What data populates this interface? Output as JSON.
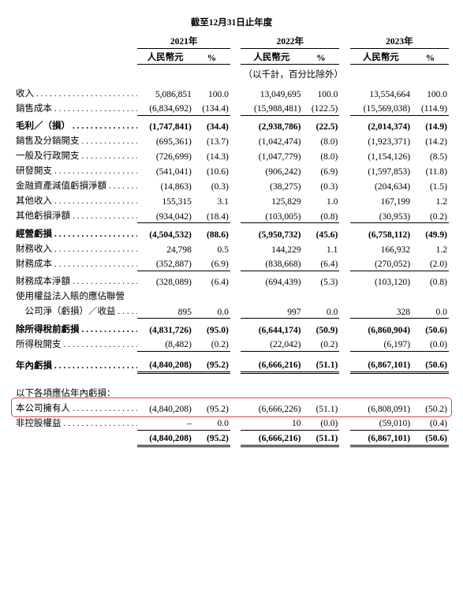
{
  "header": {
    "title": "截至12月31日止年度",
    "years": [
      "2021年",
      "2022年",
      "2023年"
    ],
    "sub_rmb": "人民幣元",
    "sub_pct": "%",
    "unit_note": "（以千計，百分比除外）"
  },
  "rows": [
    {
      "label": "收入",
      "dots": true,
      "v1": "5,086,851",
      "p1": "100.0",
      "v2": "13,049,695",
      "p2": "100.0",
      "v3": "13,554,664",
      "p3": "100.0"
    },
    {
      "label": "銷售成本",
      "dots": true,
      "v1": "(6,834,692)",
      "p1": "(134.4)",
      "v2": "(15,988,481)",
      "p2": "(122.5)",
      "v3": "(15,569,038)",
      "p3": "(114.9)",
      "bb": "1"
    },
    {
      "spacer": true,
      "sm": true
    },
    {
      "label": "毛利／（損）",
      "dots": true,
      "bold": true,
      "v1": "(1,747,841)",
      "p1": "(34.4)",
      "v2": "(2,938,786)",
      "p2": "(22.5)",
      "v3": "(2,014,374)",
      "p3": "(14.9)"
    },
    {
      "label": "銷售及分銷開支",
      "dots": true,
      "v1": "(695,361)",
      "p1": "(13.7)",
      "v2": "(1,042,474)",
      "p2": "(8.0)",
      "v3": "(1,923,371)",
      "p3": "(14.2)"
    },
    {
      "label": "一般及行政開支",
      "dots": true,
      "v1": "(726,699)",
      "p1": "(14.3)",
      "v2": "(1,047,779)",
      "p2": "(8.0)",
      "v3": "(1,154,126)",
      "p3": "(8.5)"
    },
    {
      "label": "研發開支",
      "dots": true,
      "v1": "(541,041)",
      "p1": "(10.6)",
      "v2": "(906,242)",
      "p2": "(6.9)",
      "v3": "(1,597,853)",
      "p3": "(11.8)"
    },
    {
      "label": "金融資產減值虧損淨額",
      "dots": true,
      "v1": "(14,863)",
      "p1": "(0.3)",
      "v2": "(38,275)",
      "p2": "(0.3)",
      "v3": "(204,634)",
      "p3": "(1.5)"
    },
    {
      "label": "其他收入",
      "dots": true,
      "v1": "155,315",
      "p1": "3.1",
      "v2": "125,829",
      "p2": "1.0",
      "v3": "167,199",
      "p3": "1.2"
    },
    {
      "label": "其他虧損淨額",
      "dots": true,
      "v1": "(934,042)",
      "p1": "(18.4)",
      "v2": "(103,005)",
      "p2": "(0.8)",
      "v3": "(30,953)",
      "p3": "(0.2)",
      "bb": "1"
    },
    {
      "spacer": true,
      "sm": true
    },
    {
      "label": "經營虧損",
      "dots": true,
      "bold": true,
      "v1": "(4,504,532)",
      "p1": "(88.6)",
      "v2": "(5,950,732)",
      "p2": "(45.6)",
      "v3": "(6,758,112)",
      "p3": "(49.9)"
    },
    {
      "label": "財務收入",
      "dots": true,
      "v1": "24,798",
      "p1": "0.5",
      "v2": "144,229",
      "p2": "1.1",
      "v3": "166,932",
      "p3": "1.2"
    },
    {
      "label": "財務成本",
      "dots": true,
      "v1": "(352,887)",
      "p1": "(6.9)",
      "v2": "(838,668)",
      "p2": "(6.4)",
      "v3": "(270,052)",
      "p3": "(2.0)",
      "bb": "1"
    },
    {
      "spacer": true,
      "sm": true
    },
    {
      "label": "財務成本淨額",
      "dots": true,
      "v1": "(328,089)",
      "p1": "(6.4)",
      "v2": "(694,439)",
      "p2": "(5.3)",
      "v3": "(103,120)",
      "p3": "(0.8)"
    },
    {
      "label": "使用權益法入賬的應佔聯營",
      "dots": false,
      "v1": "",
      "p1": "",
      "v2": "",
      "p2": "",
      "v3": "",
      "p3": ""
    },
    {
      "label": "　公司淨（虧損）／收益",
      "dots": true,
      "v1": "895",
      "p1": "0.0",
      "v2": "997",
      "p2": "0.0",
      "v3": "328",
      "p3": "0.0",
      "bb": "1"
    },
    {
      "spacer": true,
      "sm": true
    },
    {
      "label": "除所得稅前虧損",
      "dots": true,
      "bold": true,
      "v1": "(4,831,726)",
      "p1": "(95.0)",
      "v2": "(6,644,174)",
      "p2": "(50.9)",
      "v3": "(6,860,904)",
      "p3": "(50.6)"
    },
    {
      "label": "所得稅開支",
      "dots": true,
      "v1": "(8,482)",
      "p1": "(0.2)",
      "v2": "(22,042)",
      "p2": "(0.2)",
      "v3": "(6,197)",
      "p3": "(0.0)",
      "bb": "1"
    },
    {
      "spacer": true
    },
    {
      "label": "年內虧損",
      "dots": true,
      "bold": true,
      "v1": "(4,840,208)",
      "p1": "(95.2)",
      "v2": "(6,666,216)",
      "p2": "(51.1)",
      "v3": "(6,867,101)",
      "p3": "(50.6)",
      "bb": "3"
    },
    {
      "spacer": true
    },
    {
      "spacer": true
    },
    {
      "label": "以下各項應佔年內虧損：",
      "dots": false,
      "v1": "",
      "p1": "",
      "v2": "",
      "p2": "",
      "v3": "",
      "p3": ""
    },
    {
      "label": "本公司擁有人",
      "dots": true,
      "highlight": true,
      "v1": "(4,840,208)",
      "p1": "(95.2)",
      "v2": "(6,666,226)",
      "p2": "(51.1)",
      "v3": "(6,808,091)",
      "p3": "(50.2)"
    },
    {
      "label": "非控股權益",
      "dots": true,
      "v1": "–",
      "p1": "0.0",
      "v2": "10",
      "p2": "(0.0)",
      "v3": "(59,010)",
      "p3": "(0.4)",
      "bb": "1"
    },
    {
      "spacer": true,
      "sm": true
    },
    {
      "label": "",
      "dots": false,
      "bold": true,
      "v1": "(4,840,208)",
      "p1": "(95.2)",
      "v2": "(6,666,216)",
      "p2": "(51.1)",
      "v3": "(6,867,101)",
      "p3": "(50.6)",
      "bb": "3"
    }
  ],
  "colors": {
    "highlight_border": "#e64545",
    "text": "#000000",
    "background": "#ffffff"
  }
}
